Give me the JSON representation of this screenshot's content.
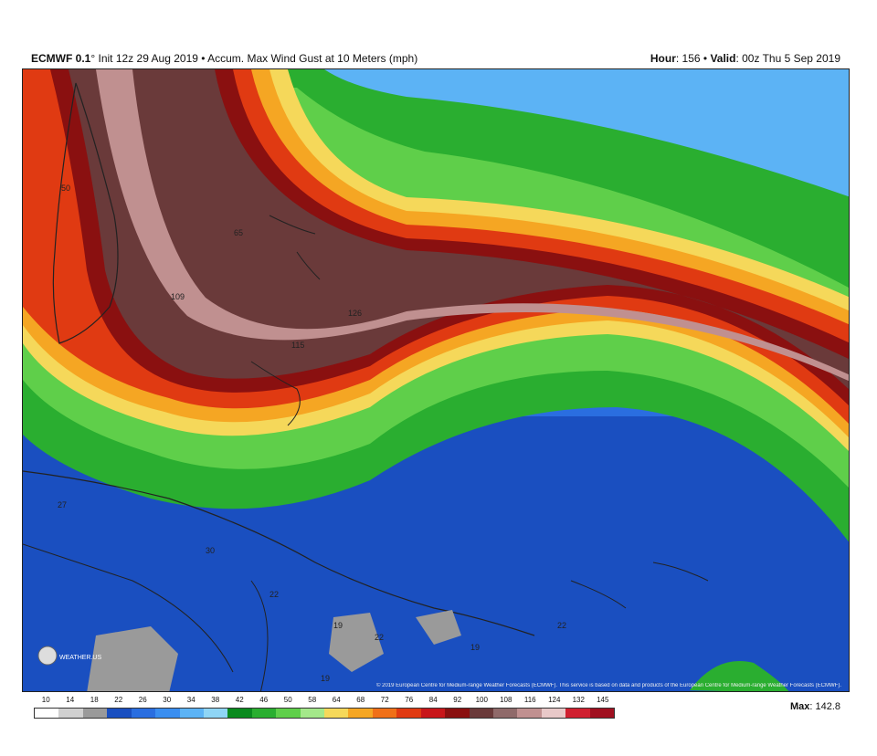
{
  "header": {
    "model": "ECMWF 0.1",
    "degree": "°",
    "subtitle": " Init 12z 29 Aug 2019 • Accum. Max Wind Gust at 10 Meters (mph)",
    "hour_label": "Hour",
    "hour_value": ": 156 • ",
    "valid_label": "Valid",
    "valid_value": ": 00z Thu 5 Sep 2019"
  },
  "copyright": "© 2019 European Centre for Medium-range Weather Forecasts (ECMWF). This service is based on data and products of the European Centre for Medium-range Weather Forecasts (ECMWF).",
  "logo_text": "WEATHER.US",
  "max": {
    "label": "Max",
    "value": ": 142.8"
  },
  "colorbar": {
    "ticks": [
      "10",
      "14",
      "18",
      "22",
      "26",
      "30",
      "34",
      "38",
      "42",
      "46",
      "50",
      "58",
      "64",
      "68",
      "72",
      "76",
      "84",
      "92",
      "100",
      "108",
      "116",
      "124",
      "132",
      "145"
    ],
    "colors": [
      "#ffffff",
      "#d0d0d0",
      "#9a9a9a",
      "#1a4fc0",
      "#2a6ee0",
      "#3a8ef0",
      "#5cb3f5",
      "#8fd5f5",
      "#0a8a1e",
      "#2aae30",
      "#5fcf4a",
      "#a4e88a",
      "#f5d85a",
      "#f5a623",
      "#f07018",
      "#e03a12",
      "#c8161a",
      "#8a1010",
      "#6a3a3a",
      "#8f6a6a",
      "#c09090",
      "#e8c8c8",
      "#d02030",
      "#a01020"
    ]
  },
  "map_labels": [
    {
      "name": "label-50",
      "text": "50"
    },
    {
      "name": "label-109",
      "text": "109"
    },
    {
      "name": "label-126",
      "text": "126"
    },
    {
      "name": "label-115",
      "text": "115"
    },
    {
      "name": "label-65",
      "text": "65"
    },
    {
      "name": "label-27",
      "text": "27"
    },
    {
      "name": "label-30",
      "text": "30"
    },
    {
      "name": "label-22a",
      "text": "22"
    },
    {
      "name": "label-19a",
      "text": "19"
    },
    {
      "name": "label-22b",
      "text": "22"
    },
    {
      "name": "label-19b",
      "text": "19"
    },
    {
      "name": "label-22c",
      "text": "22"
    },
    {
      "name": "label-19c",
      "text": "19"
    }
  ]
}
